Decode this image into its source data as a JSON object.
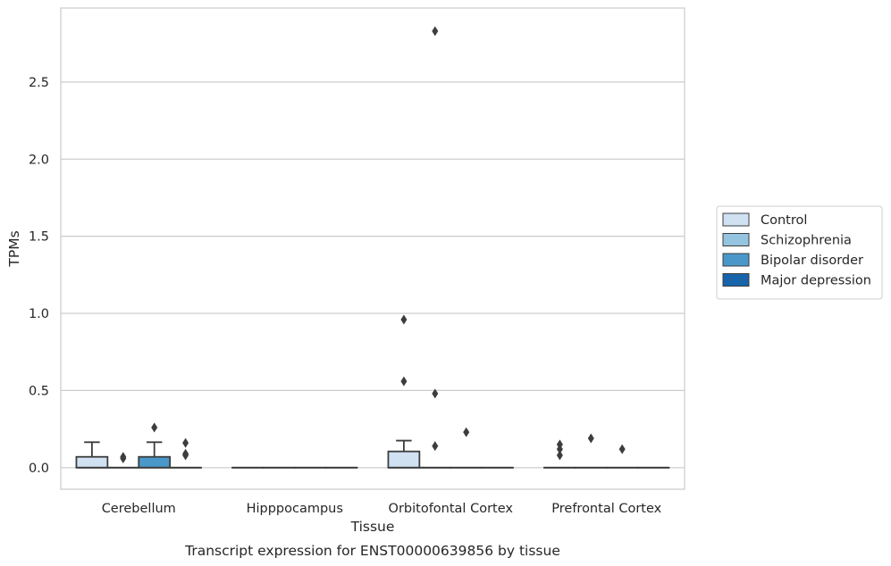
{
  "chart_data": {
    "type": "box",
    "xlabel": "Tissue",
    "ylabel": "TPMs",
    "caption": "Transcript expression for ENST00000639856 by tissue",
    "ylim": [
      -0.14,
      2.98
    ],
    "yticks": [
      0.0,
      0.5,
      1.0,
      1.5,
      2.0,
      2.5
    ],
    "ytick_labels": [
      "0.0",
      "0.5",
      "1.0",
      "1.5",
      "2.0",
      "2.5"
    ],
    "grid": "horizontal",
    "legend_position": "right",
    "categories": [
      "Cerebellum",
      "Hipppocampus",
      "Orbitofontal Cortex",
      "Prefrontal Cortex"
    ],
    "series": [
      {
        "name": "Control",
        "color": "#d0e1f2",
        "boxes": [
          {
            "q1": 0.0,
            "median": 0.0,
            "q3": 0.07,
            "whisker_low": 0.0,
            "whisker_high": 0.165,
            "outliers": []
          },
          {
            "q1": 0.0,
            "median": 0.0,
            "q3": 0.0,
            "whisker_low": 0.0,
            "whisker_high": 0.0,
            "outliers": []
          },
          {
            "q1": 0.0,
            "median": 0.0,
            "q3": 0.105,
            "whisker_low": 0.0,
            "whisker_high": 0.175,
            "outliers": [
              0.96,
              0.56
            ]
          },
          {
            "q1": 0.0,
            "median": 0.0,
            "q3": 0.0,
            "whisker_low": 0.0,
            "whisker_high": 0.0,
            "outliers": [
              0.08,
              0.12,
              0.15
            ]
          }
        ]
      },
      {
        "name": "Schizophrenia",
        "color": "#94c4df",
        "boxes": [
          {
            "q1": 0.0,
            "median": 0.0,
            "q3": 0.0,
            "whisker_low": 0.0,
            "whisker_high": 0.0,
            "outliers": [
              0.06,
              0.07
            ]
          },
          {
            "q1": 0.0,
            "median": 0.0,
            "q3": 0.0,
            "whisker_low": 0.0,
            "whisker_high": 0.0,
            "outliers": []
          },
          {
            "q1": 0.0,
            "median": 0.0,
            "q3": 0.0,
            "whisker_low": 0.0,
            "whisker_high": 0.0,
            "outliers": [
              2.83,
              0.48,
              0.14
            ]
          },
          {
            "q1": 0.0,
            "median": 0.0,
            "q3": 0.0,
            "whisker_low": 0.0,
            "whisker_high": 0.0,
            "outliers": [
              0.19
            ]
          }
        ]
      },
      {
        "name": "Bipolar disorder",
        "color": "#4a98c9",
        "boxes": [
          {
            "q1": 0.0,
            "median": 0.0,
            "q3": 0.07,
            "whisker_low": 0.0,
            "whisker_high": 0.165,
            "outliers": [
              0.26
            ]
          },
          {
            "q1": 0.0,
            "median": 0.0,
            "q3": 0.0,
            "whisker_low": 0.0,
            "whisker_high": 0.0,
            "outliers": []
          },
          {
            "q1": 0.0,
            "median": 0.0,
            "q3": 0.0,
            "whisker_low": 0.0,
            "whisker_high": 0.0,
            "outliers": [
              0.23
            ]
          },
          {
            "q1": 0.0,
            "median": 0.0,
            "q3": 0.0,
            "whisker_low": 0.0,
            "whisker_high": 0.0,
            "outliers": [
              0.12
            ]
          }
        ]
      },
      {
        "name": "Major depression",
        "color": "#1764ab",
        "boxes": [
          {
            "q1": 0.0,
            "median": 0.0,
            "q3": 0.0,
            "whisker_low": 0.0,
            "whisker_high": 0.0,
            "outliers": [
              0.16,
              0.09,
              0.08
            ]
          },
          {
            "q1": 0.0,
            "median": 0.0,
            "q3": 0.0,
            "whisker_low": 0.0,
            "whisker_high": 0.0,
            "outliers": []
          },
          {
            "q1": 0.0,
            "median": 0.0,
            "q3": 0.0,
            "whisker_low": 0.0,
            "whisker_high": 0.0,
            "outliers": []
          },
          {
            "q1": 0.0,
            "median": 0.0,
            "q3": 0.0,
            "whisker_low": 0.0,
            "whisker_high": 0.0,
            "outliers": []
          }
        ]
      }
    ]
  }
}
